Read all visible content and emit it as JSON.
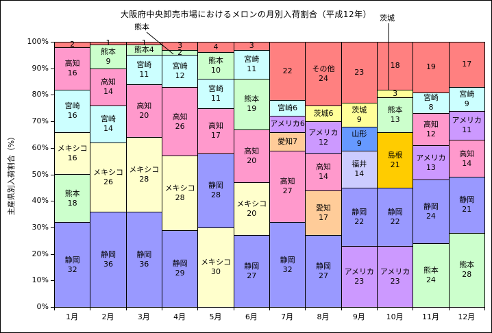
{
  "title": "大阪府中央卸売市場におけるメロンの月別入荷割合（平成12年）",
  "y_axis": {
    "title": "主産県別入荷割合（%）",
    "ticks": [
      "100%",
      "90%",
      "80%",
      "70%",
      "60%",
      "50%",
      "40%",
      "30%",
      "20%",
      "10%",
      "0%"
    ]
  },
  "x_axis": {
    "labels": [
      "1月",
      "2月",
      "3月",
      "4月",
      "5月",
      "6月",
      "7月",
      "8月",
      "9月",
      "10月",
      "11月",
      "12月"
    ]
  },
  "annotations": [
    {
      "label": "熊本",
      "target_month": "4月"
    },
    {
      "label": "茨城",
      "target_month": "10月"
    }
  ],
  "colors": {
    "静岡": "#9999FF",
    "メキシコ": "#FFFFCC",
    "熊本": "#CCFFCC",
    "宮崎": "#CCFFFF",
    "高知": "#FF99CC",
    "その他": "#FF8080",
    "アメリカ": "#CC99FF",
    "愛知": "#FFCC99",
    "茨城": "#FFFF99",
    "山形": "#6699FF",
    "福井": "#CCCCFF",
    "島根": "#FFCC00"
  },
  "chart_data": {
    "type": "bar",
    "stacked_percent": true,
    "title": "大阪府中央卸売市場におけるメロンの月別入荷割合（平成12年）",
    "xlabel": "",
    "ylabel": "主産県別入荷割合（%）",
    "ylim": [
      0,
      100
    ],
    "grid": false,
    "legend": false,
    "categories": [
      "1月",
      "2月",
      "3月",
      "4月",
      "5月",
      "6月",
      "7月",
      "8月",
      "9月",
      "10月",
      "11月",
      "12月"
    ],
    "months": [
      {
        "month": "1月",
        "segments": [
          {
            "name": "静岡",
            "value": 32,
            "label": [
              "静岡",
              "32"
            ]
          },
          {
            "name": "熊本",
            "value": 18,
            "label": [
              "熊本",
              "18"
            ]
          },
          {
            "name": "メキシコ",
            "value": 16,
            "label": [
              "メキシコ",
              "16"
            ]
          },
          {
            "name": "宮崎",
            "value": 16,
            "label": [
              "宮崎",
              "16"
            ]
          },
          {
            "name": "高知",
            "value": 16,
            "label": [
              "高知",
              "16"
            ]
          },
          {
            "name": "その他",
            "value": 2,
            "label": [
              "2"
            ]
          }
        ]
      },
      {
        "month": "2月",
        "segments": [
          {
            "name": "静岡",
            "value": 36,
            "label": [
              "静岡",
              "36"
            ]
          },
          {
            "name": "メキシコ",
            "value": 26,
            "label": [
              "メキシコ",
              "26"
            ]
          },
          {
            "name": "宮崎",
            "value": 14,
            "label": [
              "宮崎",
              "14"
            ]
          },
          {
            "name": "高知",
            "value": 14,
            "label": [
              "高知",
              "14"
            ]
          },
          {
            "name": "熊本",
            "value": 9,
            "label": [
              "熊本",
              "9"
            ]
          },
          {
            "name": "その他",
            "value": 1,
            "label": [
              "1"
            ]
          }
        ]
      },
      {
        "month": "3月",
        "segments": [
          {
            "name": "静岡",
            "value": 36,
            "label": [
              "静岡",
              "36"
            ]
          },
          {
            "name": "メキシコ",
            "value": 28,
            "label": [
              "メキシコ",
              "28"
            ]
          },
          {
            "name": "高知",
            "value": 20,
            "label": [
              "高知",
              "20"
            ]
          },
          {
            "name": "宮崎",
            "value": 11,
            "label": [
              "宮崎",
              "11"
            ]
          },
          {
            "name": "熊本",
            "value": 4,
            "label": [
              "熊本4"
            ]
          },
          {
            "name": "その他",
            "value": 1,
            "label": [
              "1"
            ]
          }
        ]
      },
      {
        "month": "4月",
        "segments": [
          {
            "name": "静岡",
            "value": 29,
            "label": [
              "静岡",
              "29"
            ]
          },
          {
            "name": "メキシコ",
            "value": 28,
            "label": [
              "メキシコ",
              "28"
            ]
          },
          {
            "name": "高知",
            "value": 26,
            "label": [
              "高知",
              "26"
            ]
          },
          {
            "name": "宮崎",
            "value": 12,
            "label": [
              "宮崎",
              "12"
            ]
          },
          {
            "name": "熊本",
            "value": 2,
            "label": [
              "2"
            ]
          },
          {
            "name": "その他",
            "value": 3,
            "label": [
              "3"
            ]
          }
        ]
      },
      {
        "month": "5月",
        "segments": [
          {
            "name": "メキシコ",
            "value": 30,
            "label": [
              "メキシコ",
              "30"
            ]
          },
          {
            "name": "静岡",
            "value": 28,
            "label": [
              "静岡",
              "28"
            ]
          },
          {
            "name": "高知",
            "value": 17,
            "label": [
              "高知",
              "17"
            ]
          },
          {
            "name": "宮崎",
            "value": 11,
            "label": [
              "宮崎",
              "11"
            ]
          },
          {
            "name": "熊本",
            "value": 10,
            "label": [
              "熊本",
              "10"
            ]
          },
          {
            "name": "その他",
            "value": 4,
            "label": [
              "4"
            ]
          }
        ]
      },
      {
        "month": "6月",
        "segments": [
          {
            "name": "静岡",
            "value": 27,
            "label": [
              "静岡",
              "27"
            ]
          },
          {
            "name": "メキシコ",
            "value": 20,
            "label": [
              "メキシコ",
              "20"
            ]
          },
          {
            "name": "高知",
            "value": 20,
            "label": [
              "高知",
              "20"
            ]
          },
          {
            "name": "熊本",
            "value": 19,
            "label": [
              "熊本",
              "19"
            ]
          },
          {
            "name": "宮崎",
            "value": 11,
            "label": [
              "宮崎",
              "11"
            ]
          },
          {
            "name": "その他",
            "value": 3,
            "label": [
              "3"
            ]
          }
        ]
      },
      {
        "month": "7月",
        "segments": [
          {
            "name": "静岡",
            "value": 32,
            "label": [
              "静岡",
              "32"
            ]
          },
          {
            "name": "高知",
            "value": 27,
            "label": [
              "高知",
              "27"
            ]
          },
          {
            "name": "愛知",
            "value": 7,
            "label": [
              "愛知7"
            ]
          },
          {
            "name": "アメリカ",
            "value": 6,
            "label": [
              "アメリカ6"
            ]
          },
          {
            "name": "宮崎",
            "value": 6,
            "label": [
              "宮崎6"
            ]
          },
          {
            "name": "その他",
            "value": 22,
            "label": [
              "22"
            ]
          }
        ]
      },
      {
        "month": "8月",
        "segments": [
          {
            "name": "静岡",
            "value": 27,
            "label": [
              "静岡",
              "27"
            ]
          },
          {
            "name": "愛知",
            "value": 17,
            "label": [
              "愛知",
              "17"
            ]
          },
          {
            "name": "高知",
            "value": 14,
            "label": [
              "高知",
              "14"
            ]
          },
          {
            "name": "アメリカ",
            "value": 12,
            "label": [
              "アメリカ",
              "12"
            ]
          },
          {
            "name": "茨城",
            "value": 6,
            "label": [
              "茨城6"
            ]
          },
          {
            "name": "その他",
            "value": 24,
            "label": [
              "その他",
              "24"
            ]
          }
        ]
      },
      {
        "month": "9月",
        "segments": [
          {
            "name": "アメリカ",
            "value": 23,
            "label": [
              "アメリカ",
              "23"
            ]
          },
          {
            "name": "静岡",
            "value": 22,
            "label": [
              "静岡",
              "22"
            ]
          },
          {
            "name": "福井",
            "value": 14,
            "label": [
              "福井",
              "14"
            ]
          },
          {
            "name": "山形",
            "value": 9,
            "label": [
              "山形",
              "9"
            ]
          },
          {
            "name": "茨城",
            "value": 9,
            "label": [
              "茨城",
              "9"
            ]
          },
          {
            "name": "その他",
            "value": 23,
            "label": [
              "23"
            ]
          }
        ]
      },
      {
        "month": "10月",
        "segments": [
          {
            "name": "アメリカ",
            "value": 23,
            "label": [
              "アメリカ",
              "23"
            ]
          },
          {
            "name": "静岡",
            "value": 22,
            "label": [
              "静岡",
              "22"
            ]
          },
          {
            "name": "島根",
            "value": 21,
            "label": [
              "島根",
              "21"
            ]
          },
          {
            "name": "熊本",
            "value": 13,
            "label": [
              "熊本",
              "13"
            ]
          },
          {
            "name": "茨城",
            "value": 3,
            "label": [
              "3"
            ]
          },
          {
            "name": "その他",
            "value": 18,
            "label": [
              "18"
            ]
          }
        ]
      },
      {
        "month": "11月",
        "segments": [
          {
            "name": "熊本",
            "value": 24,
            "label": [
              "熊本",
              "24"
            ]
          },
          {
            "name": "静岡",
            "value": 24,
            "label": [
              "静岡",
              "24"
            ]
          },
          {
            "name": "アメリカ",
            "value": 13,
            "label": [
              "アメリカ",
              "13"
            ]
          },
          {
            "name": "高知",
            "value": 12,
            "label": [
              "高知",
              "12"
            ]
          },
          {
            "name": "宮崎",
            "value": 8,
            "label": [
              "宮崎",
              "8"
            ]
          },
          {
            "name": "その他",
            "value": 19,
            "label": [
              "19"
            ]
          }
        ]
      },
      {
        "month": "12月",
        "segments": [
          {
            "name": "熊本",
            "value": 28,
            "label": [
              "熊本",
              "28"
            ]
          },
          {
            "name": "静岡",
            "value": 21,
            "label": [
              "静岡",
              "21"
            ]
          },
          {
            "name": "高知",
            "value": 14,
            "label": [
              "高知",
              "14"
            ]
          },
          {
            "name": "アメリカ",
            "value": 11,
            "label": [
              "アメリカ",
              "11"
            ]
          },
          {
            "name": "宮崎",
            "value": 9,
            "label": [
              "宮崎",
              "9"
            ]
          },
          {
            "name": "その他",
            "value": 17,
            "label": [
              "17"
            ]
          }
        ]
      }
    ]
  }
}
